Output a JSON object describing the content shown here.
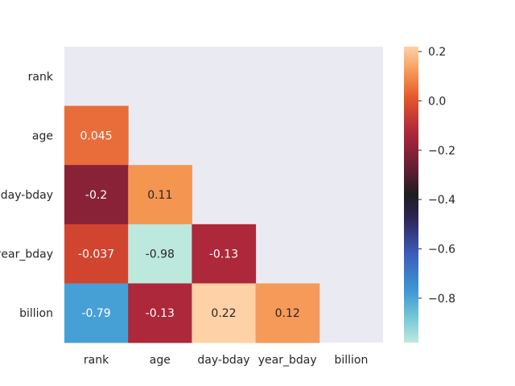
{
  "chart_data": {
    "type": "heatmap",
    "title": "",
    "xlabel": "",
    "ylabel": "",
    "x_categories": [
      "rank",
      "age",
      "day-bday",
      "year_bday",
      "billion"
    ],
    "y_categories": [
      "rank",
      "age",
      "day-bday",
      "year_bday",
      "billion"
    ],
    "mask": "upper-triangle-including-diagonal",
    "cells": [
      {
        "row": "age",
        "col": "rank",
        "value": 0.045,
        "label": "0.045"
      },
      {
        "row": "day-bday",
        "col": "rank",
        "value": -0.2,
        "label": "-0.2"
      },
      {
        "row": "day-bday",
        "col": "age",
        "value": 0.11,
        "label": "0.11"
      },
      {
        "row": "year_bday",
        "col": "rank",
        "value": -0.037,
        "label": "-0.037"
      },
      {
        "row": "year_bday",
        "col": "age",
        "value": -0.98,
        "label": "-0.98"
      },
      {
        "row": "year_bday",
        "col": "day-bday",
        "value": -0.13,
        "label": "-0.13"
      },
      {
        "row": "billion",
        "col": "rank",
        "value": -0.79,
        "label": "-0.79"
      },
      {
        "row": "billion",
        "col": "age",
        "value": -0.13,
        "label": "-0.13"
      },
      {
        "row": "billion",
        "col": "day-bday",
        "value": 0.22,
        "label": "0.22"
      },
      {
        "row": "billion",
        "col": "year_bday",
        "value": 0.12,
        "label": "0.12"
      }
    ],
    "colorbar": {
      "range": [
        -0.98,
        0.22
      ],
      "center": -0.38,
      "colormap": "icefire",
      "ticks": [
        0.2,
        0.0,
        -0.2,
        -0.4,
        -0.6,
        -0.8
      ],
      "tick_labels": [
        "0.2",
        "0.0",
        "−0.2",
        "−0.4",
        "−0.6",
        "−0.8"
      ]
    },
    "background_color": "#eaeaf2",
    "grid": false
  }
}
